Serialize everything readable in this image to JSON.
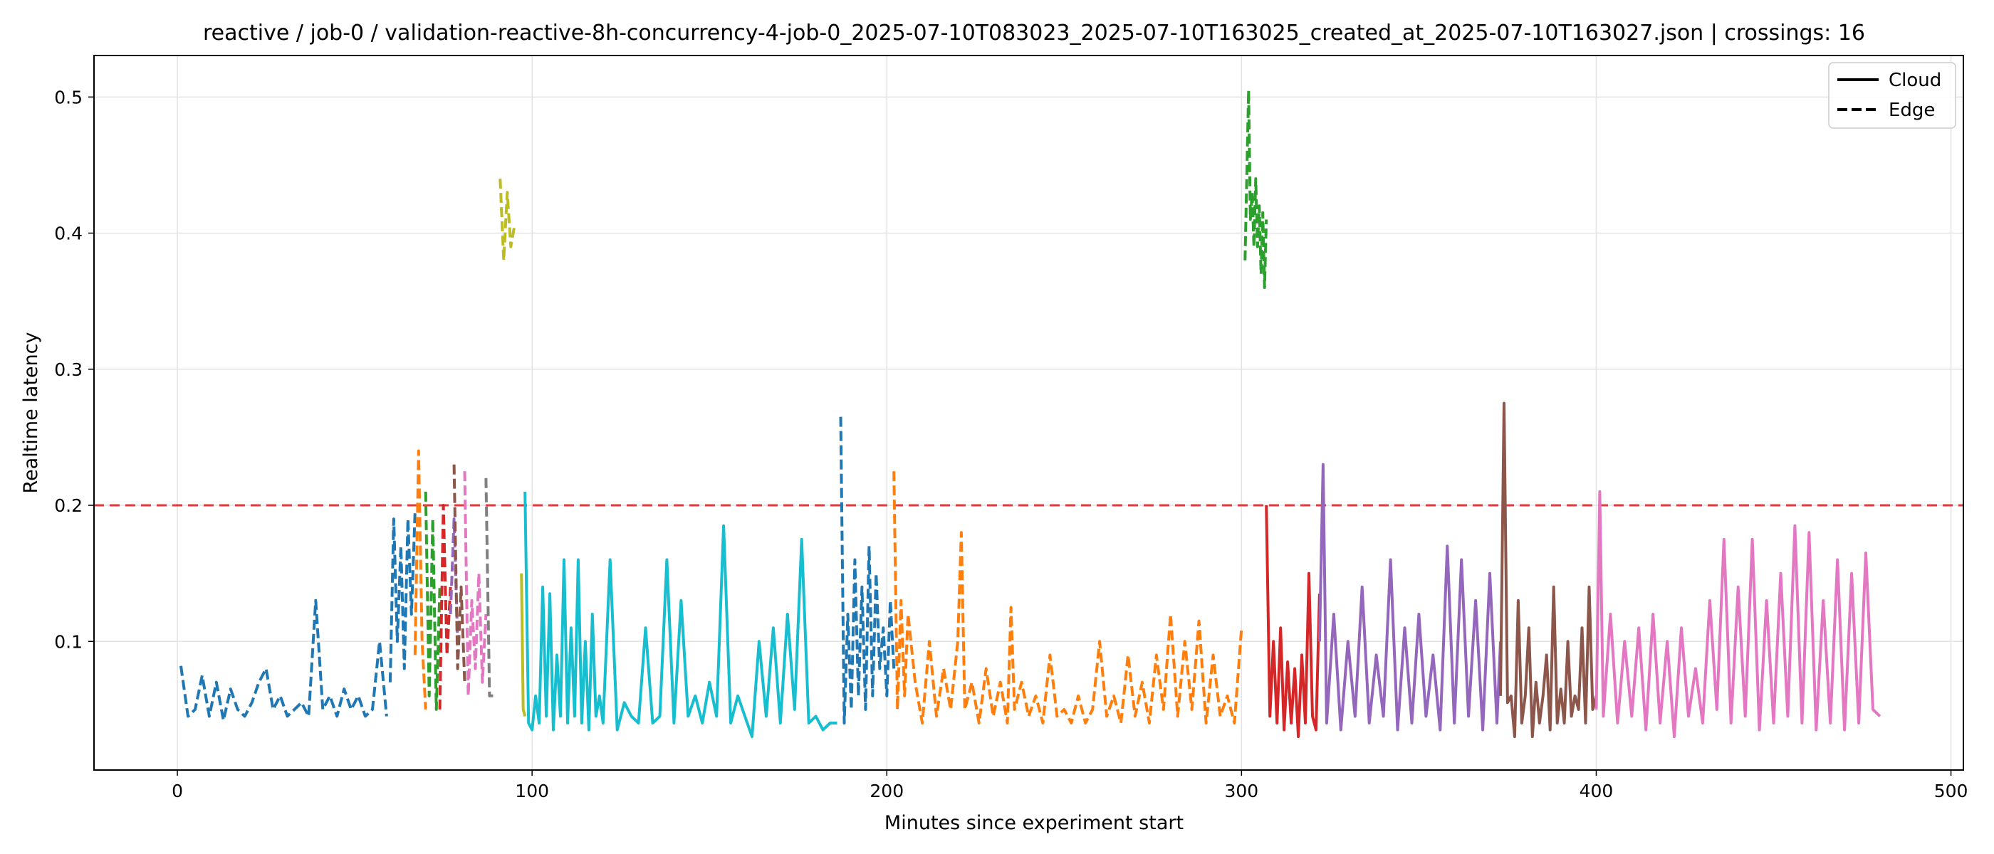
{
  "chart_data": {
    "type": "line",
    "title": "reactive / job-0 / validation-reactive-8h-concurrency-4-job-0_2025-07-10T083023_2025-07-10T163025_created_at_2025-07-10T163027.json  |  crossings: 16",
    "xlabel": "Minutes since experiment start",
    "ylabel": "Realtime latency",
    "xlim": [
      -23.5,
      503.5
    ],
    "ylim": [
      0.0055,
      0.5305
    ],
    "xticks": [
      0,
      100,
      200,
      300,
      400,
      500
    ],
    "yticks": [
      0.1,
      0.2,
      0.3,
      0.4,
      0.5
    ],
    "xtick_labels": [
      "0",
      "100",
      "200",
      "300",
      "400",
      "500"
    ],
    "ytick_labels": [
      "0.1",
      "0.2",
      "0.3",
      "0.4",
      "0.5"
    ],
    "grid": true,
    "threshold": {
      "y": 0.2,
      "color": "#e8383b",
      "style": "dashed"
    },
    "legend": {
      "position": "top-right",
      "entries": [
        {
          "label": "Cloud",
          "style": "solid"
        },
        {
          "label": "Edge",
          "style": "dashed"
        }
      ]
    },
    "series": [
      {
        "color": "#1f77b4",
        "style": "dashed",
        "x": [
          1,
          3,
          5,
          7,
          9,
          11,
          13,
          15,
          17,
          19,
          21,
          23,
          25,
          27,
          29,
          31,
          33,
          35,
          37,
          39,
          41,
          43,
          45,
          47,
          49,
          51,
          53,
          55,
          57,
          59
        ],
        "y": [
          0.082,
          0.045,
          0.05,
          0.075,
          0.045,
          0.07,
          0.042,
          0.065,
          0.05,
          0.045,
          0.055,
          0.07,
          0.08,
          0.05,
          0.06,
          0.045,
          0.05,
          0.055,
          0.045,
          0.13,
          0.05,
          0.06,
          0.045,
          0.065,
          0.05,
          0.06,
          0.045,
          0.05,
          0.1,
          0.045
        ]
      },
      {
        "color": "#1f77b4",
        "style": "dashed",
        "x": [
          60,
          61,
          62,
          63,
          64,
          65,
          66,
          67
        ],
        "y": [
          0.07,
          0.19,
          0.1,
          0.17,
          0.08,
          0.19,
          0.12,
          0.195
        ]
      },
      {
        "color": "#ff7f0e",
        "style": "dashed",
        "x": [
          67,
          68,
          69,
          70
        ],
        "y": [
          0.09,
          0.24,
          0.1,
          0.05
        ]
      },
      {
        "color": "#2ca02c",
        "style": "dashed",
        "x": [
          70,
          71,
          72,
          73,
          74
        ],
        "y": [
          0.21,
          0.06,
          0.19,
          0.05,
          0.14
        ]
      },
      {
        "color": "#d62728",
        "style": "dashed",
        "x": [
          74,
          75,
          76,
          77
        ],
        "y": [
          0.05,
          0.2,
          0.09,
          0.14
        ]
      },
      {
        "color": "#9467bd",
        "style": "dashed",
        "x": [
          77,
          78,
          79
        ],
        "y": [
          0.12,
          0.19,
          0.1
        ]
      },
      {
        "color": "#8c564b",
        "style": "dashed",
        "x": [
          78,
          79,
          80,
          81
        ],
        "y": [
          0.23,
          0.08,
          0.14,
          0.07
        ]
      },
      {
        "color": "#e377c2",
        "style": "dashed",
        "x": [
          81,
          82,
          83,
          84,
          85,
          86,
          87
        ],
        "y": [
          0.225,
          0.06,
          0.13,
          0.08,
          0.15,
          0.07,
          0.12
        ]
      },
      {
        "color": "#7f7f7f",
        "style": "dashed",
        "x": [
          87,
          88,
          89
        ],
        "y": [
          0.22,
          0.06,
          0.06
        ]
      },
      {
        "color": "#bcbd22",
        "style": "dashed",
        "x": [
          91,
          92,
          93,
          94,
          95
        ],
        "y": [
          0.44,
          0.38,
          0.43,
          0.39,
          0.405
        ]
      },
      {
        "color": "#bcbd22",
        "style": "solid",
        "x": [
          97,
          97.5,
          98
        ],
        "y": [
          0.15,
          0.05,
          0.045
        ]
      },
      {
        "color": "#17becf",
        "style": "solid",
        "x": [
          98,
          99,
          100,
          101,
          102,
          103,
          104,
          105,
          106,
          107,
          108,
          109,
          110,
          111,
          112,
          113,
          114,
          115,
          116,
          117,
          118,
          119,
          120,
          122,
          124,
          126,
          128,
          130,
          132,
          134,
          136,
          138,
          140,
          142,
          144,
          146,
          148,
          150,
          152,
          154,
          156,
          158,
          160,
          162,
          164,
          166,
          168,
          170,
          172,
          174,
          176,
          178,
          180,
          182,
          184,
          186
        ],
        "y": [
          0.21,
          0.04,
          0.035,
          0.06,
          0.04,
          0.14,
          0.045,
          0.135,
          0.035,
          0.09,
          0.045,
          0.16,
          0.04,
          0.11,
          0.045,
          0.16,
          0.04,
          0.1,
          0.035,
          0.12,
          0.045,
          0.06,
          0.04,
          0.16,
          0.035,
          0.055,
          0.045,
          0.04,
          0.11,
          0.04,
          0.045,
          0.16,
          0.04,
          0.13,
          0.045,
          0.06,
          0.04,
          0.07,
          0.045,
          0.185,
          0.04,
          0.06,
          0.045,
          0.03,
          0.1,
          0.045,
          0.11,
          0.04,
          0.12,
          0.05,
          0.175,
          0.04,
          0.045,
          0.035,
          0.04,
          0.04
        ]
      },
      {
        "color": "#1f77b4",
        "style": "dashed",
        "x": [
          187,
          188,
          189,
          190,
          191,
          192,
          193,
          194,
          195,
          196,
          197,
          198,
          199,
          200,
          201,
          202
        ],
        "y": [
          0.265,
          0.04,
          0.12,
          0.05,
          0.16,
          0.06,
          0.14,
          0.05,
          0.17,
          0.06,
          0.15,
          0.08,
          0.11,
          0.06,
          0.13,
          0.08
        ]
      },
      {
        "color": "#ff7f0e",
        "style": "dashed",
        "x": [
          202,
          203,
          204,
          205,
          206,
          208,
          210,
          212,
          214,
          216,
          218,
          220,
          221,
          222,
          224,
          226,
          228,
          230,
          232,
          234,
          235,
          236,
          238,
          240,
          242,
          244,
          246,
          248,
          250,
          252,
          254,
          256,
          258,
          260,
          262,
          264,
          266,
          268,
          270,
          272,
          274,
          276,
          278,
          280,
          282,
          284,
          286,
          288,
          290,
          292,
          294,
          296,
          298,
          300
        ],
        "y": [
          0.225,
          0.05,
          0.13,
          0.06,
          0.12,
          0.07,
          0.04,
          0.1,
          0.045,
          0.08,
          0.05,
          0.1,
          0.18,
          0.05,
          0.07,
          0.04,
          0.08,
          0.045,
          0.07,
          0.04,
          0.125,
          0.05,
          0.07,
          0.045,
          0.06,
          0.04,
          0.09,
          0.045,
          0.05,
          0.04,
          0.06,
          0.04,
          0.05,
          0.1,
          0.045,
          0.06,
          0.04,
          0.09,
          0.045,
          0.07,
          0.04,
          0.09,
          0.05,
          0.12,
          0.045,
          0.1,
          0.05,
          0.115,
          0.04,
          0.09,
          0.045,
          0.06,
          0.04,
          0.11
        ]
      },
      {
        "color": "#2ca02c",
        "style": "dashed",
        "x": [
          301,
          302,
          302.5,
          303,
          303.5,
          304,
          304.5,
          305,
          305.5,
          306,
          306.5,
          307
        ],
        "y": [
          0.38,
          0.505,
          0.41,
          0.43,
          0.39,
          0.44,
          0.39,
          0.42,
          0.37,
          0.415,
          0.36,
          0.41
        ]
      },
      {
        "color": "#d62728",
        "style": "solid",
        "x": [
          307,
          308,
          309,
          310,
          311,
          312,
          313,
          314,
          315,
          316,
          317,
          318,
          319,
          320,
          321,
          322
        ],
        "y": [
          0.2,
          0.045,
          0.1,
          0.04,
          0.11,
          0.035,
          0.085,
          0.04,
          0.08,
          0.03,
          0.09,
          0.04,
          0.15,
          0.045,
          0.035,
          0.135
        ]
      },
      {
        "color": "#9467bd",
        "style": "solid",
        "x": [
          322,
          323,
          324,
          326,
          328,
          330,
          332,
          334,
          336,
          338,
          340,
          342,
          344,
          346,
          348,
          350,
          352,
          354,
          356,
          358,
          360,
          362,
          364,
          366,
          368,
          370,
          372,
          373
        ],
        "y": [
          0.1,
          0.23,
          0.04,
          0.12,
          0.035,
          0.1,
          0.045,
          0.14,
          0.04,
          0.09,
          0.045,
          0.16,
          0.035,
          0.11,
          0.04,
          0.12,
          0.045,
          0.09,
          0.035,
          0.17,
          0.04,
          0.16,
          0.045,
          0.13,
          0.035,
          0.15,
          0.04,
          0.1
        ]
      },
      {
        "color": "#8c564b",
        "style": "solid",
        "x": [
          373,
          374,
          375,
          376,
          377,
          378,
          379,
          380,
          381,
          382,
          383,
          384,
          385,
          386,
          387,
          388,
          389,
          390,
          391,
          392,
          393,
          394,
          395,
          396,
          397,
          398,
          399,
          400
        ],
        "y": [
          0.06,
          0.275,
          0.055,
          0.06,
          0.03,
          0.13,
          0.04,
          0.06,
          0.11,
          0.03,
          0.07,
          0.04,
          0.06,
          0.09,
          0.035,
          0.14,
          0.04,
          0.065,
          0.04,
          0.1,
          0.045,
          0.06,
          0.05,
          0.11,
          0.04,
          0.14,
          0.05,
          0.06
        ]
      },
      {
        "color": "#e377c2",
        "style": "solid",
        "x": [
          400,
          401,
          402,
          404,
          406,
          408,
          410,
          412,
          414,
          416,
          418,
          420,
          422,
          424,
          426,
          428,
          430,
          432,
          434,
          436,
          438,
          440,
          442,
          444,
          446,
          448,
          450,
          452,
          454,
          456,
          458,
          460,
          462,
          464,
          466,
          468,
          470,
          472,
          474,
          476,
          478,
          480
        ],
        "y": [
          0.05,
          0.21,
          0.045,
          0.12,
          0.04,
          0.1,
          0.045,
          0.11,
          0.035,
          0.12,
          0.04,
          0.1,
          0.03,
          0.11,
          0.045,
          0.08,
          0.04,
          0.13,
          0.05,
          0.175,
          0.04,
          0.14,
          0.045,
          0.175,
          0.035,
          0.13,
          0.04,
          0.15,
          0.045,
          0.185,
          0.04,
          0.18,
          0.035,
          0.13,
          0.04,
          0.16,
          0.035,
          0.15,
          0.04,
          0.165,
          0.05,
          0.045
        ]
      }
    ]
  }
}
